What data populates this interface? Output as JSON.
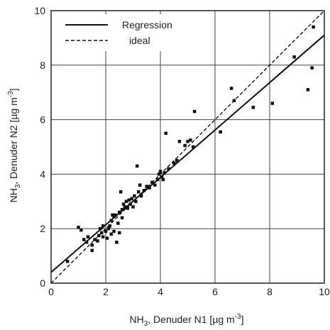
{
  "chart_data": {
    "type": "scatter",
    "xlabel": "NH3, Denuder N1 [µg m-3]",
    "ylabel": "NH3, Denuder N2 [µg m-3]",
    "xlim": [
      0,
      10
    ],
    "ylim": [
      0,
      10
    ],
    "xticks": [
      "0",
      "2",
      "4",
      "6",
      "8",
      "10"
    ],
    "yticks": [
      "0",
      "2",
      "4",
      "6",
      "8",
      "10"
    ],
    "grid": true,
    "legend_position": "top-left",
    "legend": [
      {
        "label": "Regression",
        "style": "solid"
      },
      {
        "label": "ideal",
        "style": "dashed"
      }
    ],
    "regression": {
      "slope": 0.87,
      "intercept": 0.4
    },
    "ideal": {
      "slope": 1.0,
      "intercept": 0.0
    },
    "series": [
      {
        "marker": "square",
        "points": [
          [
            0.6,
            0.8
          ],
          [
            1.0,
            2.05
          ],
          [
            1.1,
            1.95
          ],
          [
            1.2,
            1.6
          ],
          [
            1.3,
            1.5
          ],
          [
            1.35,
            1.7
          ],
          [
            1.5,
            1.2
          ],
          [
            1.5,
            1.4
          ],
          [
            1.6,
            1.6
          ],
          [
            1.7,
            1.55
          ],
          [
            1.75,
            1.75
          ],
          [
            1.8,
            2.0
          ],
          [
            1.85,
            1.85
          ],
          [
            1.9,
            1.7
          ],
          [
            1.9,
            2.1
          ],
          [
            2.0,
            1.9
          ],
          [
            2.05,
            1.65
          ],
          [
            2.1,
            2.0
          ],
          [
            2.15,
            2.1
          ],
          [
            2.2,
            1.8
          ],
          [
            2.2,
            2.3
          ],
          [
            2.25,
            2.5
          ],
          [
            2.3,
            2.45
          ],
          [
            2.3,
            1.9
          ],
          [
            2.35,
            2.5
          ],
          [
            2.4,
            1.5
          ],
          [
            2.45,
            2.2
          ],
          [
            2.5,
            2.6
          ],
          [
            2.5,
            1.85
          ],
          [
            2.55,
            3.35
          ],
          [
            2.6,
            2.4
          ],
          [
            2.6,
            2.7
          ],
          [
            2.65,
            2.9
          ],
          [
            2.7,
            2.8
          ],
          [
            2.75,
            3.0
          ],
          [
            2.8,
            2.75
          ],
          [
            2.85,
            3.05
          ],
          [
            2.9,
            2.9
          ],
          [
            2.95,
            3.1
          ],
          [
            3.0,
            2.8
          ],
          [
            3.05,
            3.2
          ],
          [
            3.1,
            3.0
          ],
          [
            3.15,
            4.3
          ],
          [
            3.2,
            3.35
          ],
          [
            3.25,
            3.6
          ],
          [
            3.3,
            3.2
          ],
          [
            3.4,
            3.4
          ],
          [
            3.5,
            3.55
          ],
          [
            3.6,
            3.5
          ],
          [
            3.7,
            3.7
          ],
          [
            3.8,
            3.6
          ],
          [
            3.9,
            3.8
          ],
          [
            3.95,
            4.0
          ],
          [
            4.0,
            4.1
          ],
          [
            4.05,
            3.9
          ],
          [
            4.1,
            3.8
          ],
          [
            4.15,
            4.05
          ],
          [
            4.2,
            5.5
          ],
          [
            4.3,
            4.2
          ],
          [
            4.5,
            4.4
          ],
          [
            4.6,
            4.5
          ],
          [
            4.7,
            5.2
          ],
          [
            4.9,
            5.05
          ],
          [
            5.0,
            5.2
          ],
          [
            5.1,
            5.25
          ],
          [
            5.2,
            5.0
          ],
          [
            5.25,
            6.3
          ],
          [
            6.2,
            5.55
          ],
          [
            6.6,
            7.15
          ],
          [
            6.7,
            6.7
          ],
          [
            7.4,
            6.45
          ],
          [
            8.1,
            6.6
          ],
          [
            8.9,
            8.3
          ],
          [
            9.4,
            7.1
          ],
          [
            9.55,
            7.9
          ],
          [
            9.6,
            9.4
          ]
        ]
      }
    ]
  }
}
